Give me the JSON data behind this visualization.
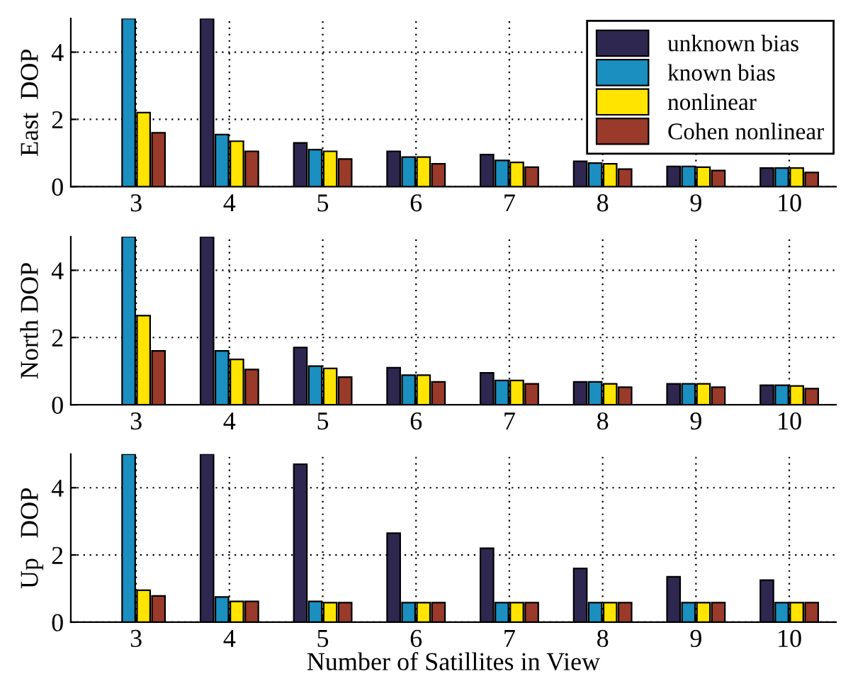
{
  "chart_data": [
    {
      "type": "bar",
      "ylabel": "East  DOP",
      "categories": [
        "3",
        "4",
        "5",
        "6",
        "7",
        "8",
        "9",
        "10"
      ],
      "ylim": [
        0,
        5
      ],
      "yticks": [
        0,
        2,
        4
      ],
      "grid": true,
      "legend": "top right",
      "series": [
        {
          "name": "unknown bias",
          "color": "#2e2750",
          "values": [
            null,
            5,
            1.3,
            1.05,
            0.95,
            0.75,
            0.6,
            0.55
          ]
        },
        {
          "name": "known bias",
          "color": "#1a8fc0",
          "values": [
            5,
            1.55,
            1.1,
            0.88,
            0.78,
            0.7,
            0.6,
            0.55
          ]
        },
        {
          "name": "nonlinear",
          "color": "#ffe400",
          "values": [
            2.2,
            1.35,
            1.05,
            0.88,
            0.72,
            0.68,
            0.58,
            0.55
          ]
        },
        {
          "name": "Cohen nonlinear",
          "color": "#9a3a2a",
          "values": [
            1.6,
            1.05,
            0.82,
            0.68,
            0.58,
            0.52,
            0.48,
            0.42
          ]
        }
      ]
    },
    {
      "type": "bar",
      "ylabel": "North DOP",
      "categories": [
        "3",
        "4",
        "5",
        "6",
        "7",
        "8",
        "9",
        "10"
      ],
      "ylim": [
        0,
        5
      ],
      "yticks": [
        0,
        2,
        4
      ],
      "grid": true,
      "series": [
        {
          "color": "#2e2750",
          "values": [
            null,
            5,
            1.7,
            1.1,
            0.95,
            0.68,
            0.62,
            0.58
          ]
        },
        {
          "color": "#1a8fc0",
          "values": [
            5,
            1.6,
            1.15,
            0.88,
            0.72,
            0.68,
            0.62,
            0.58
          ]
        },
        {
          "color": "#ffe400",
          "values": [
            2.65,
            1.35,
            1.08,
            0.88,
            0.72,
            0.62,
            0.62,
            0.56
          ]
        },
        {
          "color": "#9a3a2a",
          "values": [
            1.6,
            1.05,
            0.82,
            0.68,
            0.62,
            0.52,
            0.52,
            0.48
          ]
        }
      ]
    },
    {
      "type": "bar",
      "ylabel": "Up   DOP",
      "xlabel": "Number of Satillites in View",
      "categories": [
        "3",
        "4",
        "5",
        "6",
        "7",
        "8",
        "9",
        "10"
      ],
      "ylim": [
        0,
        5
      ],
      "yticks": [
        0,
        2,
        4
      ],
      "grid": true,
      "series": [
        {
          "color": "#2e2750",
          "values": [
            null,
            5,
            4.7,
            2.65,
            2.2,
            1.6,
            1.35,
            1.25
          ]
        },
        {
          "color": "#1a8fc0",
          "values": [
            5,
            0.75,
            0.62,
            0.58,
            0.58,
            0.58,
            0.58,
            0.58
          ]
        },
        {
          "color": "#ffe400",
          "values": [
            0.95,
            0.62,
            0.58,
            0.58,
            0.58,
            0.58,
            0.58,
            0.58
          ]
        },
        {
          "color": "#9a3a2a",
          "values": [
            0.78,
            0.62,
            0.58,
            0.58,
            0.58,
            0.58,
            0.58,
            0.58
          ]
        }
      ]
    }
  ]
}
